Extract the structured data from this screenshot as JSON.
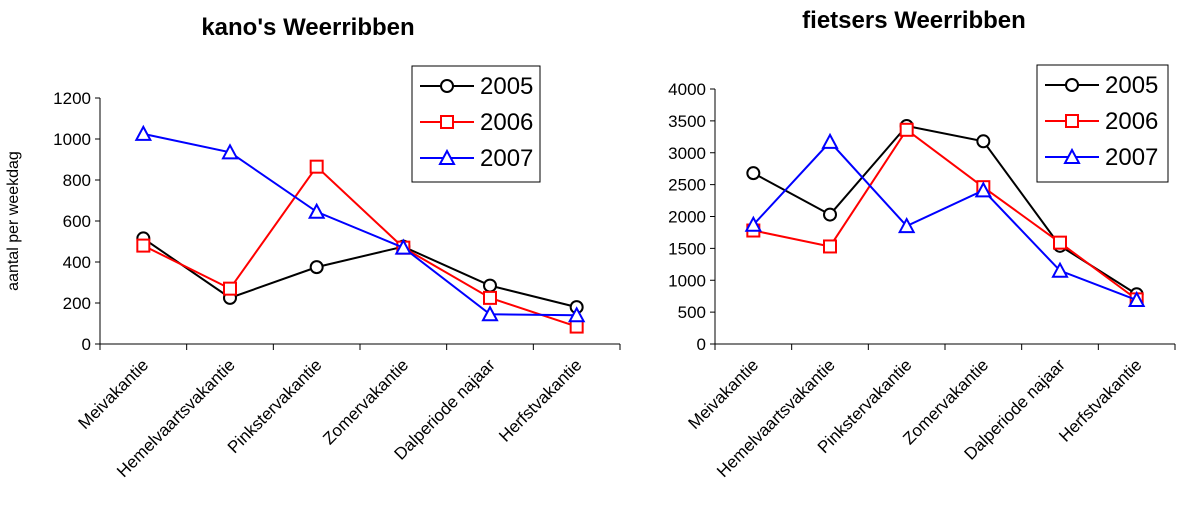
{
  "chart_data": [
    {
      "type": "line",
      "title": "kano's Weerribben",
      "xlabel": "",
      "ylabel": "aantal per weekdag",
      "ylim": [
        0,
        1200
      ],
      "yticks": [
        0,
        200,
        400,
        600,
        800,
        1000,
        1200
      ],
      "categories": [
        "Meivakantie",
        "Hemelvaartsvakantie",
        "Pinkstervakantie",
        "Zomervakantie",
        "Dalperiode najaar",
        "Herfstvakantie"
      ],
      "series": [
        {
          "name": "2005",
          "color": "#000000",
          "marker": "circle",
          "values": [
            515,
            225,
            375,
            475,
            285,
            180
          ]
        },
        {
          "name": "2006",
          "color": "#ff0000",
          "marker": "square",
          "values": [
            480,
            270,
            865,
            470,
            225,
            85
          ]
        },
        {
          "name": "2007",
          "color": "#0000ff",
          "marker": "triangle",
          "values": [
            1025,
            935,
            645,
            470,
            145,
            140
          ]
        }
      ],
      "legend": "top-right",
      "grid": false
    },
    {
      "type": "line",
      "title": "fietsers Weerribben",
      "xlabel": "",
      "ylabel": "",
      "ylim": [
        0,
        4000
      ],
      "yticks": [
        0,
        500,
        1000,
        1500,
        2000,
        2500,
        3000,
        3500,
        4000
      ],
      "categories": [
        "Meivakantie",
        "Hemelvaartsvakantie",
        "Pinkstervakantie",
        "Zomervakantie",
        "Dalperiode najaar",
        "Herfstvakantie"
      ],
      "series": [
        {
          "name": "2005",
          "color": "#000000",
          "marker": "circle",
          "values": [
            2680,
            2030,
            3420,
            3180,
            1540,
            780
          ]
        },
        {
          "name": "2006",
          "color": "#ff0000",
          "marker": "square",
          "values": [
            1780,
            1530,
            3360,
            2460,
            1590,
            700
          ]
        },
        {
          "name": "2007",
          "color": "#0000ff",
          "marker": "triangle",
          "values": [
            1870,
            3170,
            1850,
            2410,
            1150,
            690
          ]
        }
      ],
      "legend": "top-right",
      "grid": false
    }
  ]
}
